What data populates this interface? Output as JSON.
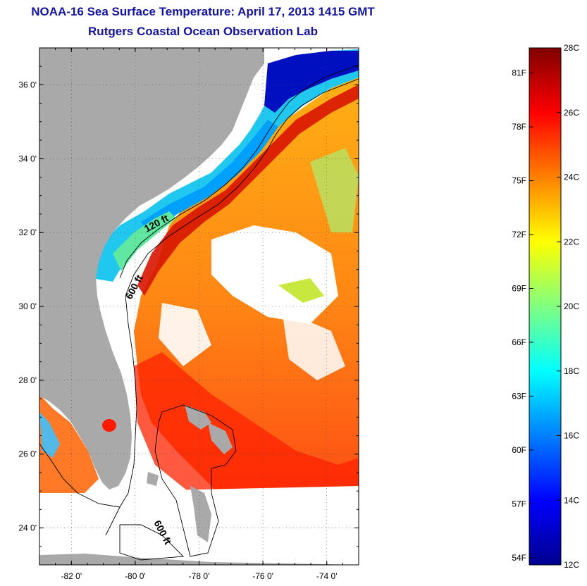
{
  "header": {
    "title": "NOAA-16 Sea Surface Temperature:  April 17, 2013 1415 GMT",
    "subtitle": "Rutgers Coastal Ocean Observation Lab"
  },
  "map": {
    "lat_range": [
      23.0,
      37.0
    ],
    "lon_range": [
      -83.0,
      -73.0
    ],
    "lat_ticks": [
      {
        "value": 24,
        "label": "24 0'"
      },
      {
        "value": 26,
        "label": "26 0'"
      },
      {
        "value": 28,
        "label": "28 0'"
      },
      {
        "value": 30,
        "label": "30 0'"
      },
      {
        "value": 32,
        "label": "32 0'"
      },
      {
        "value": 34,
        "label": "34 0'"
      },
      {
        "value": 36,
        "label": "36 0'"
      }
    ],
    "lon_ticks": [
      {
        "value": -82,
        "label": "-82 0'"
      },
      {
        "value": -80,
        "label": "-80 0'"
      },
      {
        "value": -78,
        "label": "-78 0'"
      },
      {
        "value": -76,
        "label": "-76 0'"
      },
      {
        "value": -74,
        "label": "-74 0'"
      }
    ],
    "contour_labels": [
      "120 ft",
      "600 ft",
      "600 ft"
    ],
    "colors": {
      "land": "#a9a9a9",
      "no_data": "#ffffff",
      "coastline": "#000000",
      "contour": "#000000"
    }
  },
  "colorbar": {
    "min_c": 12,
    "max_c": 28,
    "celsius_labels": [
      {
        "value": 28,
        "label": "28C"
      },
      {
        "value": 26,
        "label": "26C"
      },
      {
        "value": 24,
        "label": "24C"
      },
      {
        "value": 22,
        "label": "22C"
      },
      {
        "value": 20,
        "label": "20C"
      },
      {
        "value": 18,
        "label": "18C"
      },
      {
        "value": 16,
        "label": "16C"
      },
      {
        "value": 14,
        "label": "14C"
      },
      {
        "value": 12,
        "label": "12C"
      }
    ],
    "fahrenheit_labels": [
      {
        "value": 81,
        "label": "81F"
      },
      {
        "value": 78,
        "label": "78F"
      },
      {
        "value": 75,
        "label": "75F"
      },
      {
        "value": 72,
        "label": "72F"
      },
      {
        "value": 69,
        "label": "69F"
      },
      {
        "value": 66,
        "label": "66F"
      },
      {
        "value": 63,
        "label": "63F"
      },
      {
        "value": 60,
        "label": "60F"
      },
      {
        "value": 57,
        "label": "57F"
      },
      {
        "value": 54,
        "label": "54F"
      }
    ],
    "colormap": [
      "#00008f",
      "#0000ff",
      "#0080ff",
      "#00ffff",
      "#80ff80",
      "#ffff00",
      "#ff8000",
      "#ff0000",
      "#800000"
    ]
  }
}
